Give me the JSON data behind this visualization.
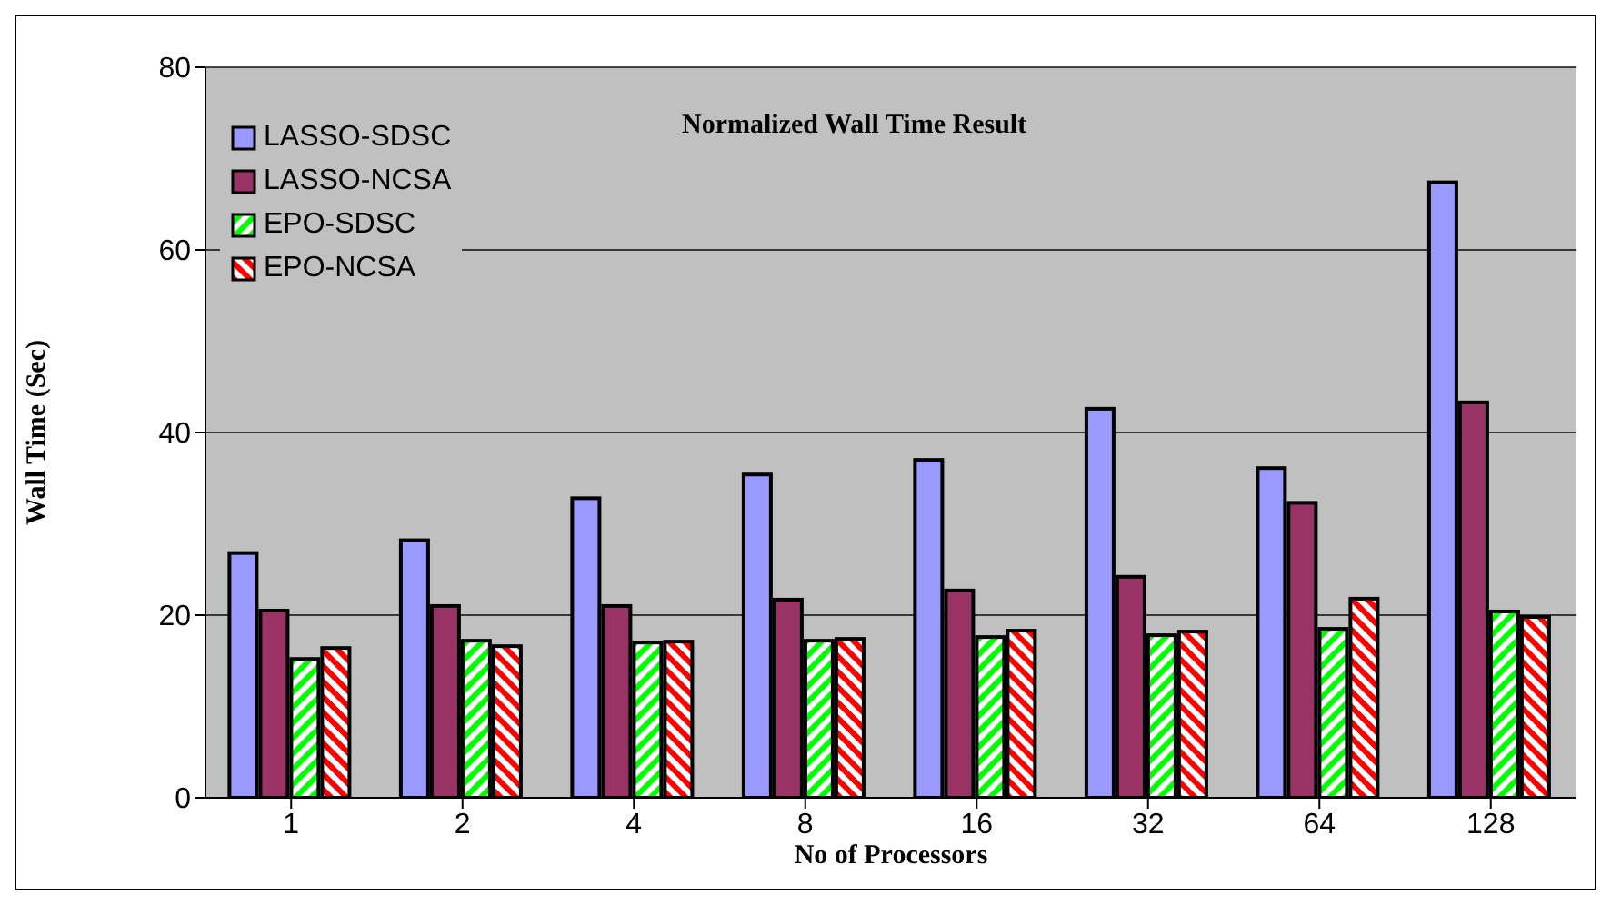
{
  "chart_data": {
    "type": "bar",
    "title": "Normalized Wall Time Result",
    "xlabel": "No of Processors",
    "ylabel": "Wall Time (Sec)",
    "categories": [
      "1",
      "2",
      "4",
      "8",
      "16",
      "32",
      "64",
      "128"
    ],
    "series": [
      {
        "name": "LASSO-SDSC",
        "color": "#9999ff",
        "values": [
          26.8,
          28.2,
          32.8,
          35.4,
          37,
          42.6,
          36.1,
          67.4
        ]
      },
      {
        "name": "LASSO-NCSA",
        "color": "#993366",
        "values": [
          20.5,
          21,
          21,
          21.7,
          22.7,
          24.2,
          32.3,
          43.3
        ]
      },
      {
        "name": "EPO-SDSC",
        "color": "#00ff00",
        "values": [
          15.2,
          17.2,
          17,
          17.2,
          17.6,
          17.8,
          18.5,
          20.4
        ]
      },
      {
        "name": "EPO-NCSA",
        "color": "#ff0000",
        "values": [
          16.4,
          16.6,
          17.1,
          17.4,
          18.3,
          18.2,
          21.8,
          19.8
        ]
      }
    ],
    "ylim": [
      0,
      80
    ],
    "yticks": [
      0,
      20,
      40,
      60,
      80
    ],
    "grid": "y",
    "legend": "top left"
  }
}
